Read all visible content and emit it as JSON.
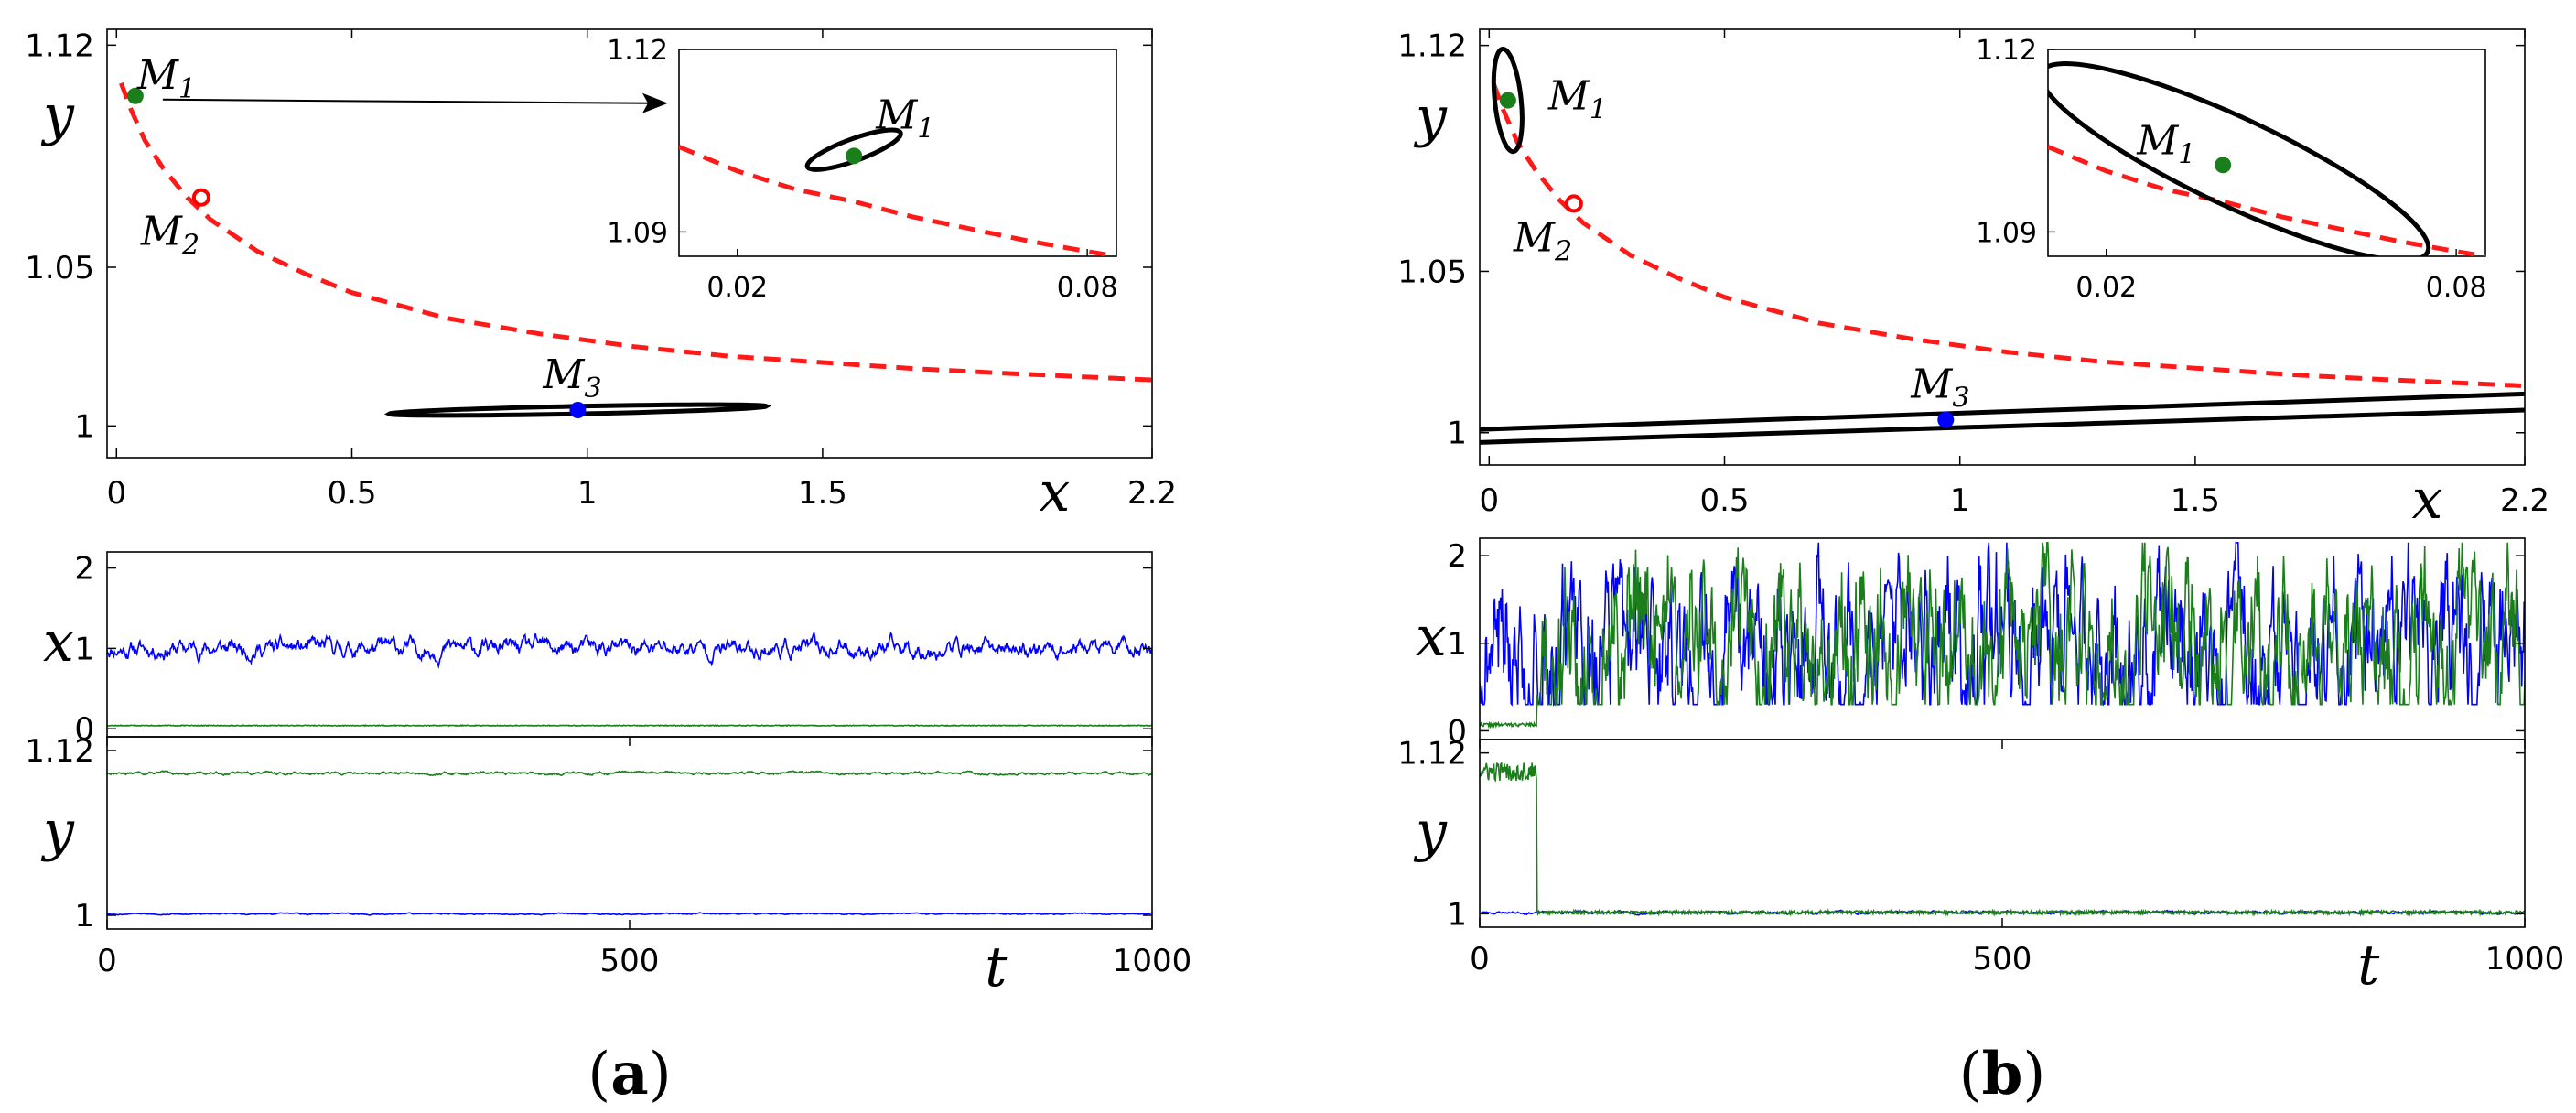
{
  "chart_data": [
    {
      "id": "a_phase",
      "panel": "a",
      "type": "line",
      "xlabel": "x",
      "ylabel": "y",
      "xlim": [
        -0.02,
        2.2
      ],
      "ylim": [
        0.99,
        1.125
      ],
      "xticks": [
        "0",
        "0.5",
        "1",
        "1.5",
        "2.2"
      ],
      "xtick_values": [
        0,
        0.5,
        1,
        1.5,
        2.2
      ],
      "yticks": [
        "1",
        "1.05",
        "1.12"
      ],
      "ytick_values": [
        1,
        1.05,
        1.12
      ],
      "slow_manifold": {
        "name": "manifold",
        "style": "red dashed",
        "x": [
          0.01,
          0.03,
          0.06,
          0.1,
          0.15,
          0.2,
          0.3,
          0.4,
          0.5,
          0.7,
          0.9,
          1.1,
          1.3,
          1.5,
          1.7,
          1.9,
          2.2
        ],
        "y": [
          1.108,
          1.1,
          1.09,
          1.081,
          1.072,
          1.065,
          1.055,
          1.048,
          1.042,
          1.034,
          1.029,
          1.025,
          1.022,
          1.02,
          1.018,
          1.0165,
          1.0145
        ]
      },
      "points": [
        {
          "name": "M",
          "sub": "1",
          "x": 0.04,
          "y": 1.104,
          "color": "#1a7f1a",
          "style": "filled"
        },
        {
          "name": "M",
          "sub": "2",
          "x": 0.18,
          "y": 1.072,
          "color": "#ff0000",
          "style": "open"
        },
        {
          "name": "M",
          "sub": "3",
          "x": 0.98,
          "y": 1.005,
          "color": "#0000ff",
          "style": "filled"
        }
      ],
      "ellipses": [
        {
          "around": "M3",
          "cx": 0.98,
          "cy": 1.005,
          "x_half_width": 0.4,
          "slope": 0.003,
          "y_half_height": 0.0012
        }
      ],
      "arrow": {
        "from_point": "M1",
        "to": "inset"
      },
      "inset": {
        "xlim": [
          0.01,
          0.085
        ],
        "ylim": [
          1.086,
          1.12
        ],
        "xticks": [
          "0.02",
          "0.08"
        ],
        "xtick_values": [
          0.02,
          0.08
        ],
        "yticks": [
          "1.09",
          "1.12"
        ],
        "ytick_values": [
          1.09,
          1.12
        ],
        "manifold_x": [
          0.01,
          0.02,
          0.03,
          0.04,
          0.05,
          0.06,
          0.07,
          0.08,
          0.085
        ],
        "manifold_y": [
          1.104,
          1.1,
          1.097,
          1.095,
          1.0925,
          1.0905,
          1.0885,
          1.0868,
          1.086
        ],
        "point": {
          "name": "M",
          "sub": "1",
          "x": 0.04,
          "y": 1.1025,
          "color": "#1a7f1a"
        },
        "ellipse": {
          "cx": 0.04,
          "cy": 1.1035,
          "rx": 0.0085,
          "ry": 0.0018,
          "slope": -0.18
        }
      }
    },
    {
      "id": "a_x_series",
      "panel": "a",
      "type": "line",
      "xlabel": "",
      "ylabel": "x",
      "xlim": [
        0,
        1000
      ],
      "ylim": [
        -0.1,
        2.2
      ],
      "yticks": [
        "0",
        "1",
        "2"
      ],
      "ytick_values": [
        0,
        1,
        2
      ],
      "series": [
        {
          "name": "blue",
          "color": "#0000ff",
          "mode": "noise",
          "mean": 1.0,
          "amp": 0.28,
          "seed": 11
        },
        {
          "name": "green",
          "color": "#1a7f1a",
          "mode": "flat",
          "mean": 0.04,
          "amp": 0.01,
          "seed": 12
        }
      ]
    },
    {
      "id": "a_y_series",
      "panel": "a",
      "type": "line",
      "xlabel": "t",
      "ylabel": "y",
      "xlim": [
        0,
        1000
      ],
      "ylim": [
        0.99,
        1.13
      ],
      "xticks": [
        "0",
        "500",
        "1000"
      ],
      "xtick_values": [
        0,
        500,
        1000
      ],
      "yticks": [
        "1",
        "1.12"
      ],
      "ytick_values": [
        1,
        1.12
      ],
      "series": [
        {
          "name": "green",
          "color": "#1a7f1a",
          "mode": "noise",
          "mean": 1.1035,
          "amp": 0.0025,
          "seed": 13
        },
        {
          "name": "blue",
          "color": "#0000ff",
          "mode": "noise",
          "mean": 1.001,
          "amp": 0.0012,
          "seed": 14
        }
      ]
    },
    {
      "id": "b_phase",
      "panel": "b",
      "type": "line",
      "xlabel": "x",
      "ylabel": "y",
      "xlim": [
        -0.02,
        2.2
      ],
      "ylim": [
        0.99,
        1.125
      ],
      "xticks": [
        "0",
        "0.5",
        "1",
        "1.5",
        "2.2"
      ],
      "xtick_values": [
        0,
        0.5,
        1,
        1.5,
        2.2
      ],
      "yticks": [
        "1",
        "1.05",
        "1.12"
      ],
      "ytick_values": [
        1,
        1.05,
        1.12
      ],
      "slow_manifold": {
        "name": "manifold",
        "style": "red dashed",
        "x": [
          0.01,
          0.03,
          0.06,
          0.1,
          0.15,
          0.2,
          0.3,
          0.4,
          0.5,
          0.7,
          0.9,
          1.1,
          1.3,
          1.5,
          1.7,
          1.9,
          2.2
        ],
        "y": [
          1.108,
          1.1,
          1.09,
          1.081,
          1.072,
          1.065,
          1.055,
          1.048,
          1.042,
          1.034,
          1.029,
          1.025,
          1.022,
          1.02,
          1.018,
          1.0165,
          1.0145
        ]
      },
      "points": [
        {
          "name": "M",
          "sub": "1",
          "x": 0.04,
          "y": 1.103,
          "color": "#1a7f1a",
          "style": "filled"
        },
        {
          "name": "M",
          "sub": "2",
          "x": 0.18,
          "y": 1.071,
          "color": "#ff0000",
          "style": "open"
        },
        {
          "name": "M",
          "sub": "3",
          "x": 0.97,
          "y": 1.004,
          "color": "#0000ff",
          "style": "filled"
        }
      ],
      "ellipses": [
        {
          "around": "M1",
          "cx": 0.04,
          "cy": 1.103,
          "rx_x": 0.028,
          "ry_y": 0.016
        },
        {
          "around": "M3",
          "band_x": [
            -0.02,
            2.2
          ],
          "band_top": [
            1.001,
            1.012
          ],
          "band_bottom": [
            0.997,
            1.007
          ]
        }
      ],
      "inset": {
        "xlim": [
          0.01,
          0.085
        ],
        "ylim": [
          1.086,
          1.12
        ],
        "xticks": [
          "0.02",
          "0.08"
        ],
        "xtick_values": [
          0.02,
          0.08
        ],
        "yticks": [
          "1.09",
          "1.12"
        ],
        "ytick_values": [
          1.09,
          1.12
        ],
        "manifold_x": [
          0.01,
          0.02,
          0.03,
          0.04,
          0.05,
          0.06,
          0.07,
          0.08,
          0.085
        ],
        "manifold_y": [
          1.104,
          1.1,
          1.097,
          1.095,
          1.0925,
          1.0905,
          1.0885,
          1.0868,
          1.086
        ],
        "point": {
          "name": "M",
          "sub": "1",
          "x": 0.04,
          "y": 1.101,
          "color": "#1a7f1a"
        },
        "ellipse": {
          "cx": 0.042,
          "cy": 1.1015,
          "rx": 0.0365,
          "ry": 0.0072,
          "slope": -0.22
        }
      }
    },
    {
      "id": "b_x_series",
      "panel": "b",
      "type": "line",
      "xlabel": "",
      "ylabel": "x",
      "xlim": [
        0,
        1000
      ],
      "ylim": [
        -0.1,
        2.2
      ],
      "yticks": [
        "0",
        "1",
        "2"
      ],
      "ytick_values": [
        0,
        1,
        2
      ],
      "series": [
        {
          "name": "blue",
          "color": "#0000ff",
          "mode": "wild",
          "mean": 0.95,
          "amp": 1.1,
          "seed": 21
        },
        {
          "name": "green",
          "color": "#1a7f1a",
          "mode": "switch",
          "t_switch": 55,
          "pre": 0.07,
          "mean": 1.0,
          "amp": 1.1,
          "seed": 22
        }
      ]
    },
    {
      "id": "b_y_series",
      "panel": "b",
      "type": "line",
      "xlabel": "t",
      "ylabel": "y",
      "xlim": [
        0,
        1000
      ],
      "ylim": [
        0.99,
        1.13
      ],
      "xticks": [
        "0",
        "500",
        "1000"
      ],
      "xtick_values": [
        0,
        500,
        1000
      ],
      "yticks": [
        "1",
        "1.12"
      ],
      "ytick_values": [
        1,
        1.12
      ],
      "series": [
        {
          "name": "blue",
          "color": "#0000ff",
          "mode": "noise",
          "mean": 1.001,
          "amp": 0.0025,
          "seed": 23
        },
        {
          "name": "green",
          "color": "#1a7f1a",
          "mode": "drop",
          "t_switch": 55,
          "pre": 1.106,
          "mean": 1.001,
          "amp": 0.0025,
          "seed": 24
        }
      ]
    }
  ],
  "panel_labels": {
    "a": "a",
    "b": "b"
  },
  "labels": {
    "x": "x",
    "y": "y",
    "t": "t",
    "M": "M"
  }
}
